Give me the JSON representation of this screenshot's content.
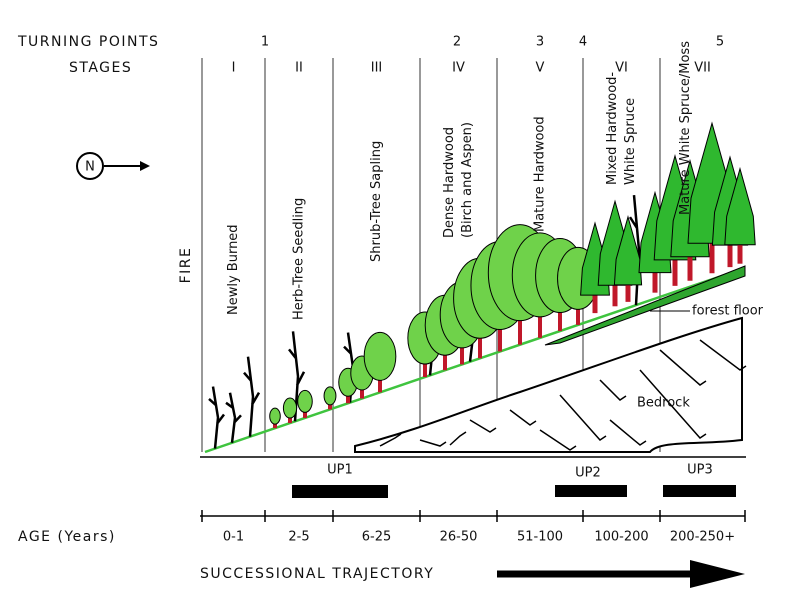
{
  "turning_points": {
    "label": "TURNING POINTS",
    "numbers": [
      "1",
      "2",
      "3",
      "4",
      "5"
    ]
  },
  "stages": {
    "label": "STAGES",
    "numerals": [
      "I",
      "II",
      "III",
      "IV",
      "V",
      "VI",
      "VII"
    ],
    "names": [
      [
        "Newly Burned"
      ],
      [
        "Herb-Tree Seedling"
      ],
      [
        "Shrub-Tree Sapling"
      ],
      [
        "Dense Hardwood",
        "(Birch and Aspen)"
      ],
      [
        "Mature Hardwood"
      ],
      [
        "Mixed Hardwood-",
        "White Spruce"
      ],
      [
        "Mature White Spruce/Moss"
      ]
    ]
  },
  "compass": "N",
  "fire": "FIRE",
  "forest_floor": "forest floor",
  "bedrock": "Bedrock",
  "up_labels": [
    "UP1",
    "UP2",
    "UP3"
  ],
  "age": {
    "label": "AGE (Years)",
    "values": [
      "0-1",
      "2-5",
      "6-25",
      "26-50",
      "51-100",
      "100-200",
      "200-250+"
    ]
  },
  "trajectory": "SUCCESSIONAL TRAJECTORY"
}
